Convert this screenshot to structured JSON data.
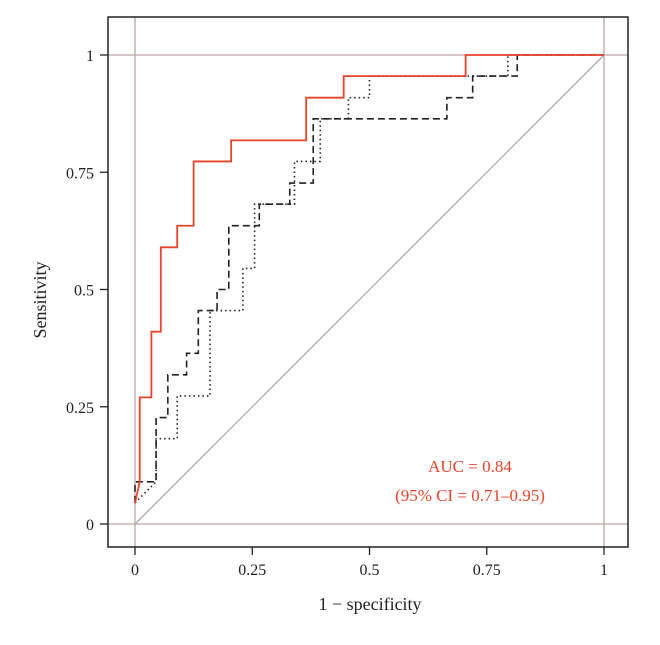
{
  "colors": {
    "accent": "#e8432b",
    "reference": "#b8a8a8",
    "series_dark": "#222222",
    "frame": "#222222"
  },
  "chart_data": {
    "type": "line",
    "xlabel": "1 − specificity",
    "ylabel": "Sensitivity",
    "xlim": [
      0,
      1
    ],
    "ylim": [
      0,
      1
    ],
    "x_ticks": [
      0,
      0.25,
      0.5,
      0.75,
      1
    ],
    "x_tick_labels": [
      "0",
      "0.25",
      "0.5",
      "0.75",
      "1"
    ],
    "y_ticks": [
      0,
      0.25,
      0.5,
      0.75,
      1
    ],
    "y_tick_labels": [
      "0",
      "0.25",
      "0.5",
      "0.75",
      "1"
    ],
    "annotation": {
      "line1": "AUC = 0.84",
      "line2": "(95% CI = 0.71–0.95)"
    },
    "series": [
      {
        "style": "solid",
        "color": "#e8432b",
        "points": [
          [
            0,
            0.045
          ],
          [
            0.01,
            0.09
          ],
          [
            0.01,
            0.27
          ],
          [
            0.035,
            0.27
          ],
          [
            0.035,
            0.41
          ],
          [
            0.055,
            0.41
          ],
          [
            0.055,
            0.59
          ],
          [
            0.09,
            0.59
          ],
          [
            0.09,
            0.636
          ],
          [
            0.125,
            0.636
          ],
          [
            0.125,
            0.773
          ],
          [
            0.205,
            0.773
          ],
          [
            0.205,
            0.818
          ],
          [
            0.365,
            0.818
          ],
          [
            0.365,
            0.909
          ],
          [
            0.445,
            0.909
          ],
          [
            0.445,
            0.955
          ],
          [
            0.705,
            0.955
          ],
          [
            0.705,
            1
          ],
          [
            1,
            1
          ]
        ]
      },
      {
        "style": "dashed",
        "color": "#222222",
        "points": [
          [
            0,
            0.045
          ],
          [
            0,
            0.09
          ],
          [
            0.045,
            0.09
          ],
          [
            0.045,
            0.227
          ],
          [
            0.07,
            0.227
          ],
          [
            0.07,
            0.318
          ],
          [
            0.11,
            0.318
          ],
          [
            0.11,
            0.364
          ],
          [
            0.135,
            0.364
          ],
          [
            0.135,
            0.455
          ],
          [
            0.175,
            0.455
          ],
          [
            0.175,
            0.5
          ],
          [
            0.2,
            0.5
          ],
          [
            0.2,
            0.636
          ],
          [
            0.265,
            0.636
          ],
          [
            0.265,
            0.682
          ],
          [
            0.33,
            0.682
          ],
          [
            0.33,
            0.727
          ],
          [
            0.38,
            0.727
          ],
          [
            0.38,
            0.864
          ],
          [
            0.665,
            0.864
          ],
          [
            0.665,
            0.909
          ],
          [
            0.72,
            0.909
          ],
          [
            0.72,
            0.955
          ],
          [
            0.815,
            0.955
          ],
          [
            0.815,
            1
          ],
          [
            1,
            1
          ]
        ]
      },
      {
        "style": "dotted",
        "color": "#222222",
        "points": [
          [
            0,
            0.045
          ],
          [
            0.045,
            0.09
          ],
          [
            0.045,
            0.182
          ],
          [
            0.09,
            0.182
          ],
          [
            0.09,
            0.273
          ],
          [
            0.16,
            0.273
          ],
          [
            0.16,
            0.455
          ],
          [
            0.23,
            0.455
          ],
          [
            0.23,
            0.545
          ],
          [
            0.255,
            0.545
          ],
          [
            0.255,
            0.682
          ],
          [
            0.34,
            0.682
          ],
          [
            0.34,
            0.773
          ],
          [
            0.395,
            0.773
          ],
          [
            0.395,
            0.864
          ],
          [
            0.455,
            0.864
          ],
          [
            0.455,
            0.909
          ],
          [
            0.5,
            0.909
          ],
          [
            0.5,
            0.955
          ],
          [
            0.795,
            0.955
          ],
          [
            0.795,
            1
          ],
          [
            1,
            1
          ]
        ]
      },
      {
        "style": "reference",
        "color": "#b8a8a8",
        "points": [
          [
            0,
            0
          ],
          [
            1,
            1
          ]
        ]
      }
    ]
  }
}
